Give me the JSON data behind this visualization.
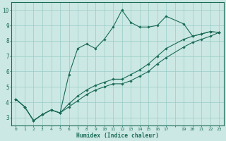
{
  "xlabel": "Humidex (Indice chaleur)",
  "bg_color": "#cce8e4",
  "grid_color": "#99ccc6",
  "line_color": "#1a6b58",
  "xlim": [
    -0.5,
    23.5
  ],
  "ylim": [
    2.5,
    10.5
  ],
  "xtick_labels": [
    "0",
    "1",
    "2",
    "3",
    "4",
    "5",
    "6",
    "7",
    "8",
    "9",
    "10",
    "11",
    "12",
    "13",
    "14",
    "15",
    "16",
    "17",
    "",
    "19",
    "20",
    "21",
    "22",
    "23"
  ],
  "xtick_positions": [
    0,
    1,
    2,
    3,
    4,
    5,
    6,
    7,
    8,
    9,
    10,
    11,
    12,
    13,
    14,
    15,
    16,
    17,
    18,
    19,
    20,
    21,
    22,
    23
  ],
  "yticks": [
    3,
    4,
    5,
    6,
    7,
    8,
    9,
    10
  ],
  "series": [
    {
      "x": [
        0,
        1,
        2,
        3,
        4,
        5,
        6,
        7,
        8,
        9,
        10,
        11,
        12,
        13,
        14,
        15,
        16,
        17,
        19,
        20,
        21,
        22,
        23
      ],
      "y": [
        4.2,
        3.7,
        2.8,
        3.2,
        3.5,
        3.3,
        5.8,
        7.5,
        7.8,
        7.5,
        8.1,
        8.9,
        10.0,
        9.2,
        8.9,
        8.9,
        9.0,
        9.6,
        9.1,
        8.3,
        8.45,
        8.6,
        8.55
      ]
    },
    {
      "x": [
        0,
        1,
        2,
        3,
        4,
        5,
        6,
        7,
        8,
        9,
        10,
        11,
        12,
        13,
        14,
        15,
        16,
        17,
        19,
        20,
        21,
        22,
        23
      ],
      "y": [
        4.2,
        3.7,
        2.8,
        3.2,
        3.5,
        3.3,
        3.9,
        4.4,
        4.8,
        5.1,
        5.3,
        5.5,
        5.5,
        5.8,
        6.1,
        6.5,
        7.0,
        7.5,
        8.1,
        8.3,
        8.45,
        8.6,
        8.55
      ]
    },
    {
      "x": [
        0,
        1,
        2,
        3,
        4,
        5,
        6,
        7,
        8,
        9,
        10,
        11,
        12,
        13,
        14,
        15,
        16,
        17,
        19,
        20,
        21,
        22,
        23
      ],
      "y": [
        4.2,
        3.7,
        2.8,
        3.2,
        3.5,
        3.3,
        3.7,
        4.1,
        4.5,
        4.8,
        5.0,
        5.2,
        5.2,
        5.4,
        5.7,
        6.0,
        6.5,
        6.9,
        7.6,
        7.9,
        8.1,
        8.3,
        8.55
      ]
    }
  ]
}
